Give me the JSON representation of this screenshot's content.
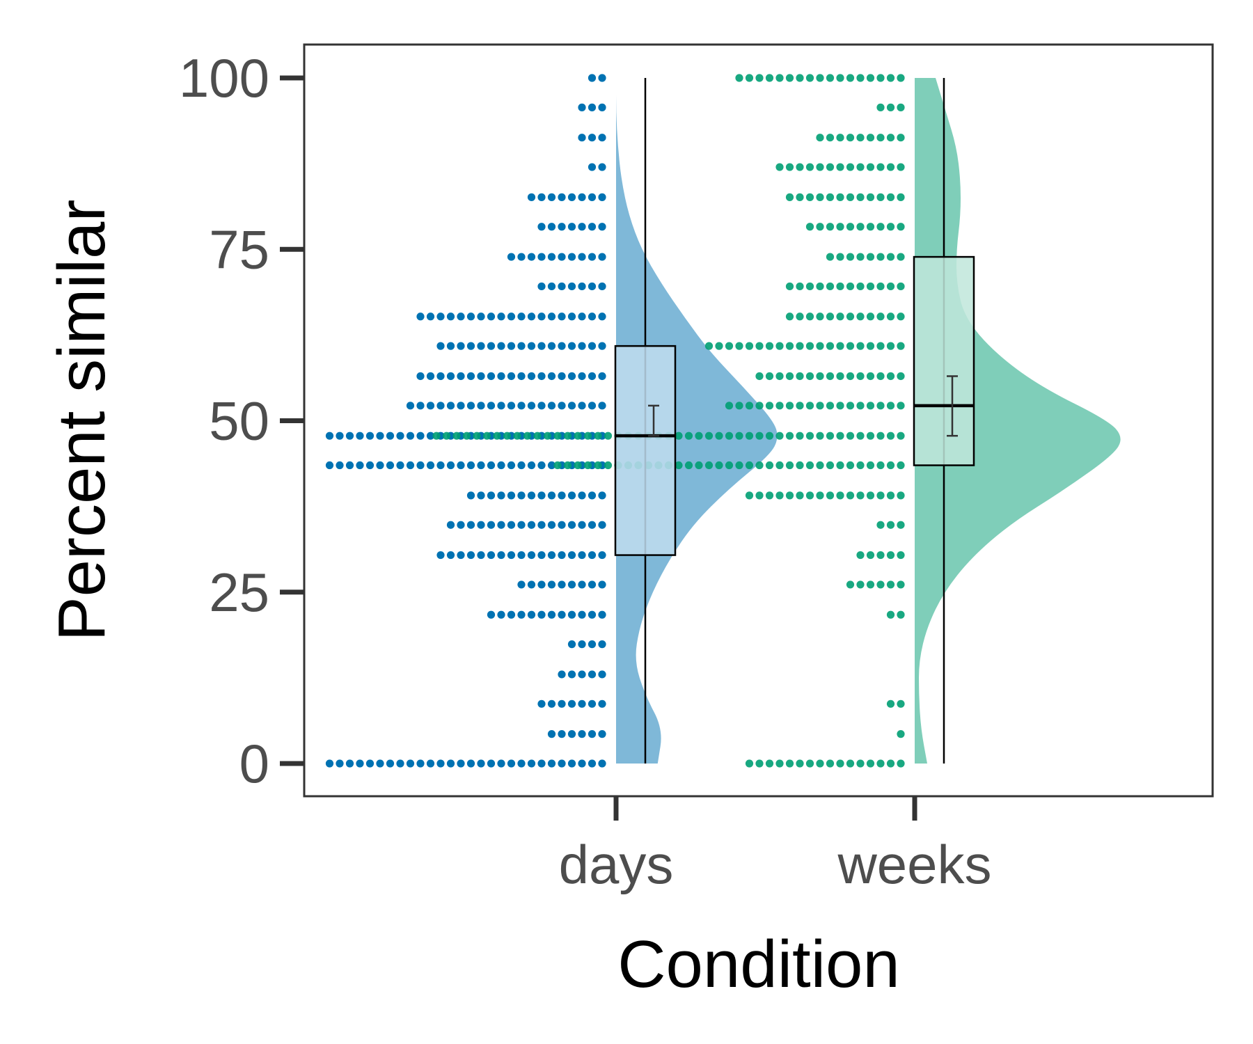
{
  "chart_data": {
    "type": "raincloud",
    "xlabel": "Condition",
    "ylabel": "Percent similar",
    "categories": [
      "days",
      "weeks"
    ],
    "ylim": [
      -5,
      104
    ],
    "yticks": [
      0,
      25,
      50,
      75,
      100
    ],
    "grid": false,
    "legend": "none",
    "series": [
      {
        "category": "days",
        "color": "#0072B2",
        "density_color": "#0072B2",
        "box_fill": "#BFDCEE",
        "dot_rows": [
          {
            "y": 100,
            "count": 2
          },
          {
            "y": 95.7,
            "count": 3
          },
          {
            "y": 91.3,
            "count": 3
          },
          {
            "y": 87,
            "count": 2
          },
          {
            "y": 82.6,
            "count": 8
          },
          {
            "y": 78.3,
            "count": 7
          },
          {
            "y": 73.9,
            "count": 10
          },
          {
            "y": 69.6,
            "count": 7
          },
          {
            "y": 65.2,
            "count": 19
          },
          {
            "y": 60.9,
            "count": 17
          },
          {
            "y": 56.5,
            "count": 19
          },
          {
            "y": 52.2,
            "count": 20
          },
          {
            "y": 47.8,
            "count": 28
          },
          {
            "y": 43.5,
            "count": 28
          },
          {
            "y": 39.1,
            "count": 14
          },
          {
            "y": 34.8,
            "count": 16
          },
          {
            "y": 30.4,
            "count": 17
          },
          {
            "y": 26.1,
            "count": 9
          },
          {
            "y": 21.7,
            "count": 12
          },
          {
            "y": 17.4,
            "count": 4
          },
          {
            "y": 13,
            "count": 5
          },
          {
            "y": 8.7,
            "count": 7
          },
          {
            "y": 4.3,
            "count": 6
          },
          {
            "y": 0,
            "count": 28
          }
        ],
        "box": {
          "q1": 30.4,
          "median": 47.8,
          "q3": 60.9,
          "lower_whisker": 0,
          "upper_whisker": 100
        },
        "mean_ci": [
          47.8,
          52.2
        ],
        "density": [
          {
            "y": 0,
            "d": 0.23
          },
          {
            "y": 5,
            "d": 0.26
          },
          {
            "y": 10,
            "d": 0.16
          },
          {
            "y": 15,
            "d": 0.1
          },
          {
            "y": 20,
            "d": 0.13
          },
          {
            "y": 25,
            "d": 0.2
          },
          {
            "y": 30,
            "d": 0.3
          },
          {
            "y": 35,
            "d": 0.43
          },
          {
            "y": 40,
            "d": 0.62
          },
          {
            "y": 45,
            "d": 0.85
          },
          {
            "y": 47.5,
            "d": 0.9
          },
          {
            "y": 50,
            "d": 0.87
          },
          {
            "y": 55,
            "d": 0.7
          },
          {
            "y": 60,
            "d": 0.52
          },
          {
            "y": 65,
            "d": 0.38
          },
          {
            "y": 70,
            "d": 0.25
          },
          {
            "y": 75,
            "d": 0.14
          },
          {
            "y": 80,
            "d": 0.07
          },
          {
            "y": 85,
            "d": 0.03
          },
          {
            "y": 90,
            "d": 0.01
          },
          {
            "y": 95,
            "d": 0.0
          },
          {
            "y": 100,
            "d": 0.0
          }
        ]
      },
      {
        "category": "weeks",
        "color": "#009E73",
        "density_color": "#009E73",
        "box_fill": "#BFE6DA",
        "dot_rows": [
          {
            "y": 100,
            "count": 17
          },
          {
            "y": 95.7,
            "count": 3
          },
          {
            "y": 91.3,
            "count": 9
          },
          {
            "y": 87,
            "count": 13
          },
          {
            "y": 82.6,
            "count": 12
          },
          {
            "y": 78.3,
            "count": 10
          },
          {
            "y": 73.9,
            "count": 8
          },
          {
            "y": 69.6,
            "count": 12
          },
          {
            "y": 65.2,
            "count": 12
          },
          {
            "y": 60.9,
            "count": 20
          },
          {
            "y": 56.5,
            "count": 15
          },
          {
            "y": 52.2,
            "count": 18
          },
          {
            "y": 47.8,
            "count": 47
          },
          {
            "y": 43.5,
            "count": 35
          },
          {
            "y": 39.1,
            "count": 16
          },
          {
            "y": 34.8,
            "count": 3
          },
          {
            "y": 30.4,
            "count": 5
          },
          {
            "y": 26.1,
            "count": 6
          },
          {
            "y": 21.7,
            "count": 2
          },
          {
            "y": 8.7,
            "count": 2
          },
          {
            "y": 4.3,
            "count": 1
          },
          {
            "y": 0,
            "count": 16
          }
        ],
        "box": {
          "q1": 43.5,
          "median": 52.2,
          "q3": 73.9,
          "lower_whisker": 0,
          "upper_whisker": 100
        },
        "mean_ci": [
          47.8,
          56.5
        ],
        "density": [
          {
            "y": 0,
            "d": 0.06
          },
          {
            "y": 5,
            "d": 0.03
          },
          {
            "y": 10,
            "d": 0.02
          },
          {
            "y": 15,
            "d": 0.02
          },
          {
            "y": 20,
            "d": 0.06
          },
          {
            "y": 25,
            "d": 0.14
          },
          {
            "y": 30,
            "d": 0.27
          },
          {
            "y": 35,
            "d": 0.46
          },
          {
            "y": 40,
            "d": 0.72
          },
          {
            "y": 45,
            "d": 0.95
          },
          {
            "y": 47.5,
            "d": 1.0
          },
          {
            "y": 50,
            "d": 0.93
          },
          {
            "y": 55,
            "d": 0.6
          },
          {
            "y": 60,
            "d": 0.38
          },
          {
            "y": 65,
            "d": 0.24
          },
          {
            "y": 70,
            "d": 0.2
          },
          {
            "y": 75,
            "d": 0.2
          },
          {
            "y": 80,
            "d": 0.22
          },
          {
            "y": 85,
            "d": 0.22
          },
          {
            "y": 90,
            "d": 0.2
          },
          {
            "y": 95,
            "d": 0.15
          },
          {
            "y": 100,
            "d": 0.1
          }
        ]
      }
    ]
  }
}
